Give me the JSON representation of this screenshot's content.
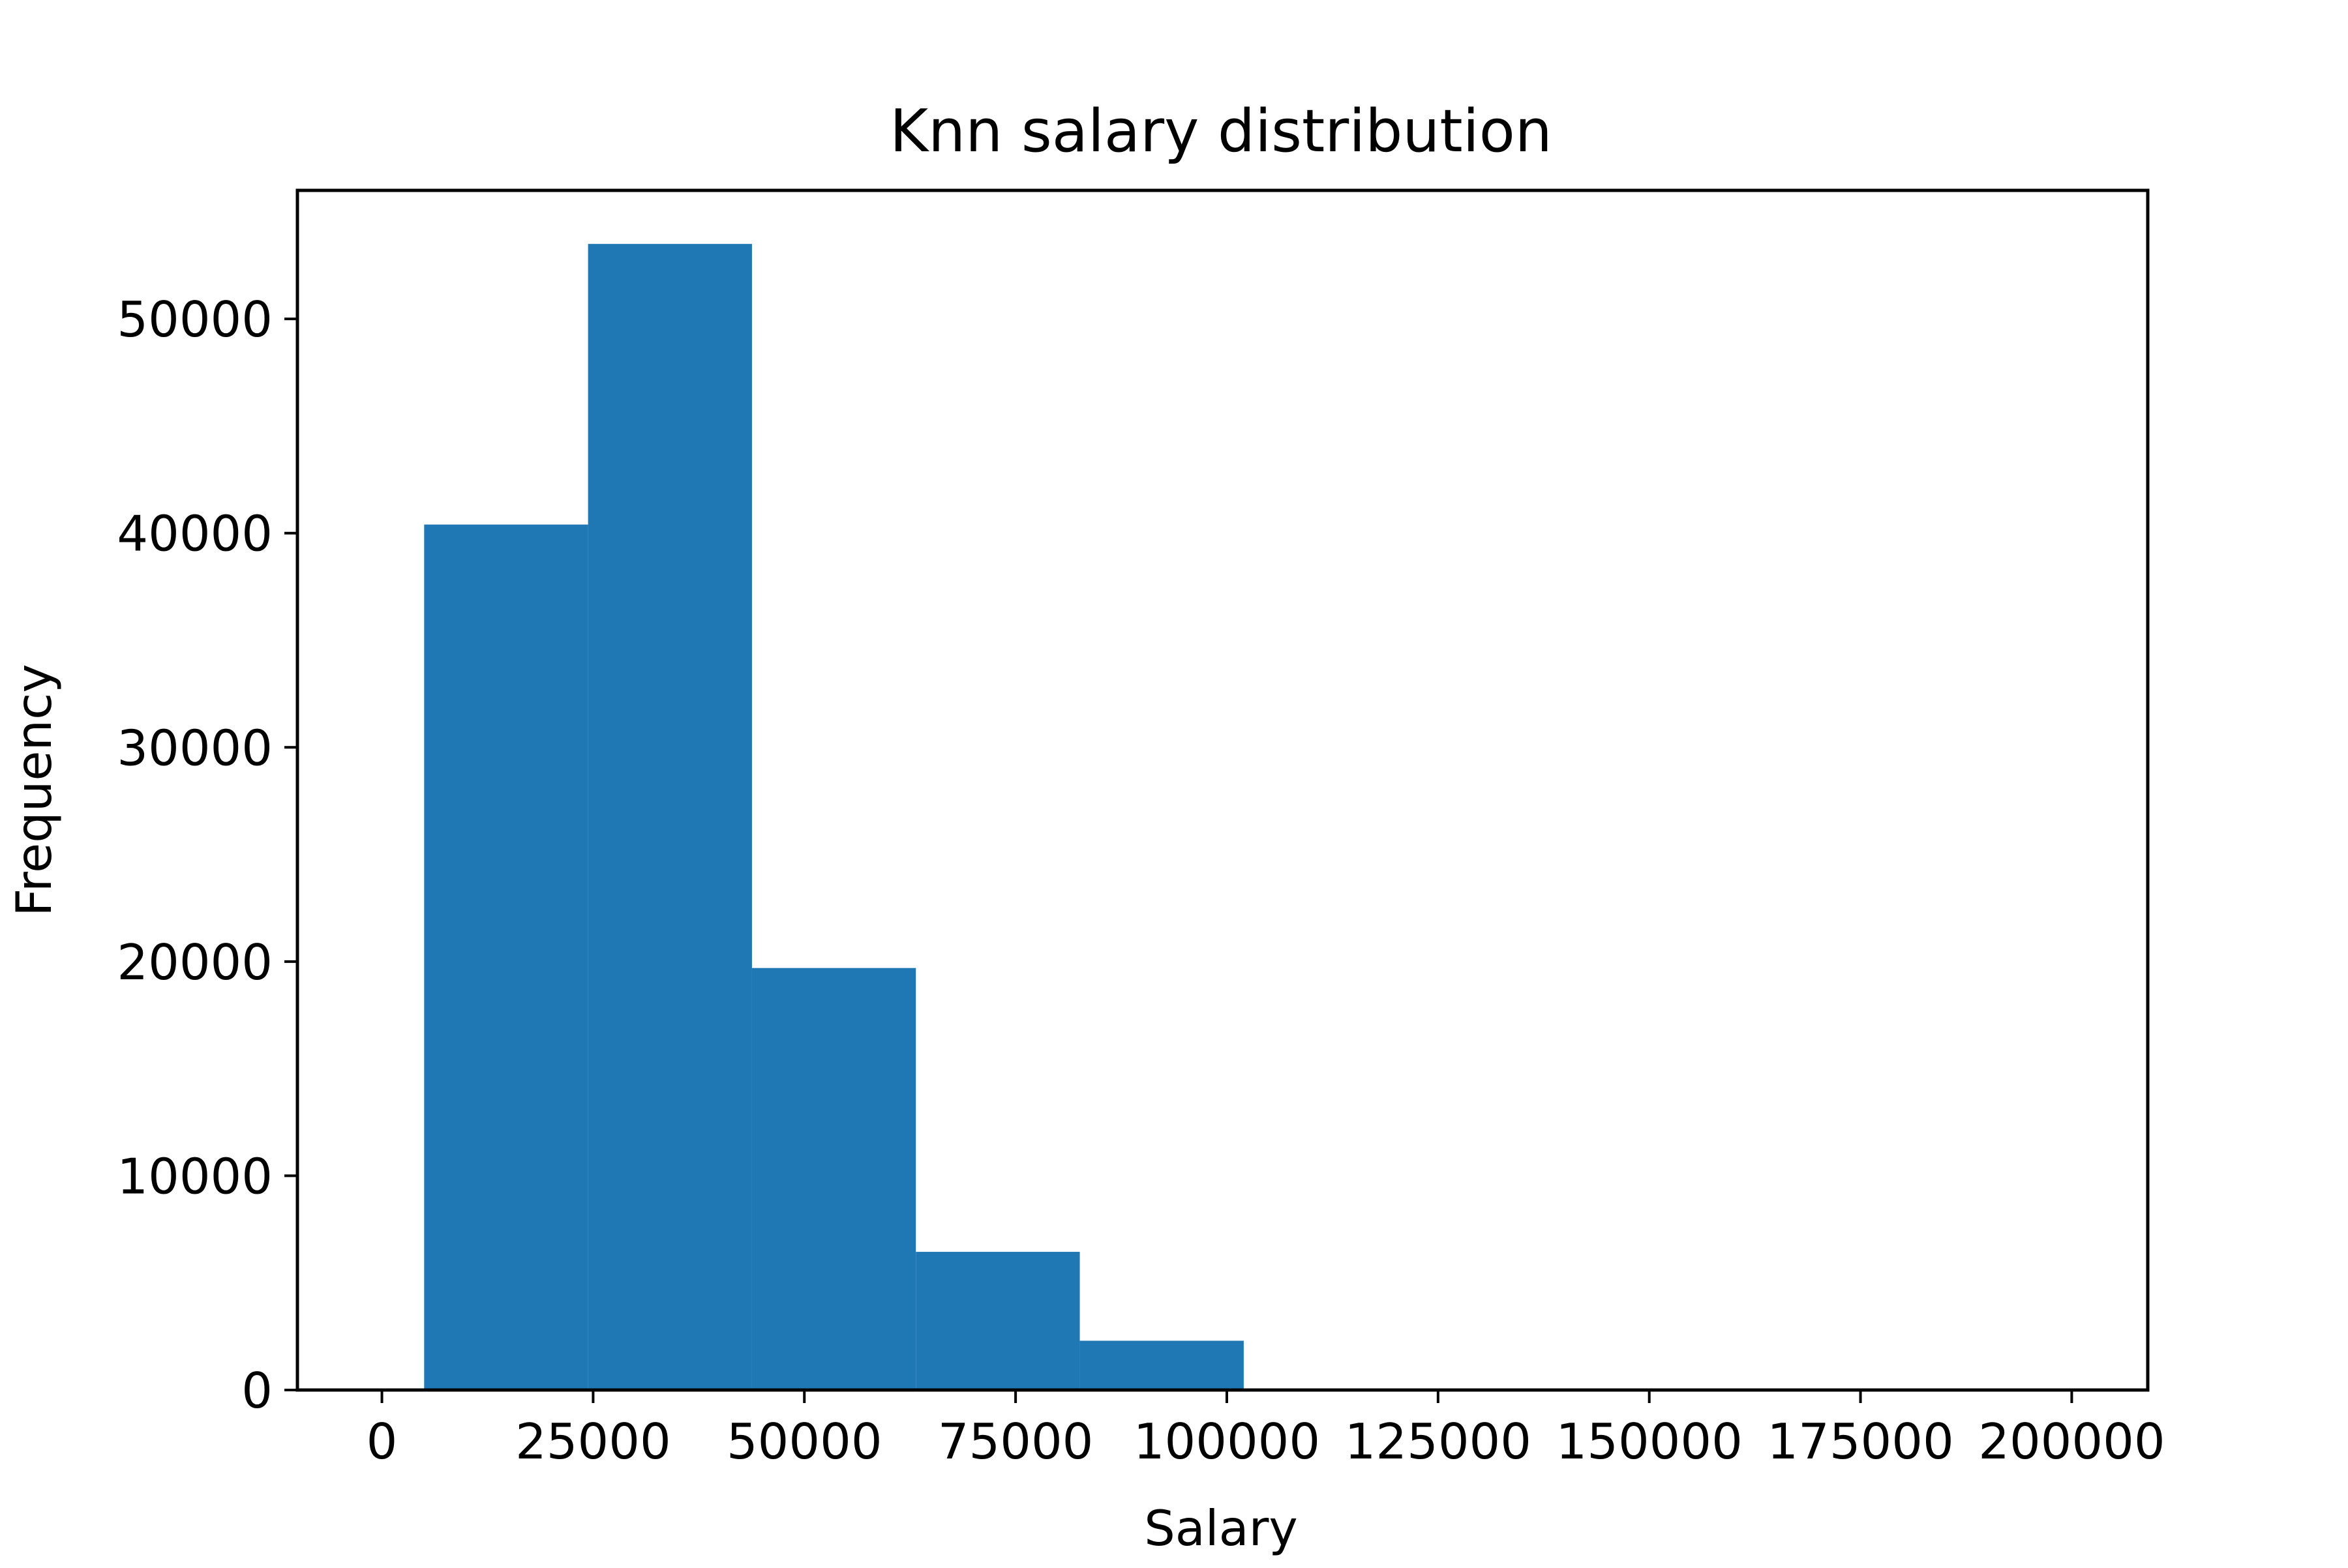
{
  "chart_data": {
    "type": "bar",
    "title": "Knn salary distribution",
    "xlabel": "Salary",
    "ylabel": "Frequency",
    "xlim": [
      -10000,
      209000
    ],
    "ylim": [
      0,
      56000
    ],
    "xticks": [
      0,
      25000,
      50000,
      75000,
      100000,
      125000,
      150000,
      175000,
      200000
    ],
    "yticks": [
      0,
      10000,
      20000,
      30000,
      40000,
      50000
    ],
    "bin_edges": [
      5000,
      24400,
      43800,
      63200,
      82600,
      102000,
      121400,
      140800,
      160200,
      179600,
      199000
    ],
    "values": [
      40400,
      53500,
      19700,
      6450,
      2300,
      0,
      0,
      0,
      0,
      0
    ],
    "bar_color": "#1f77b4",
    "grid": false,
    "legend": "none"
  }
}
